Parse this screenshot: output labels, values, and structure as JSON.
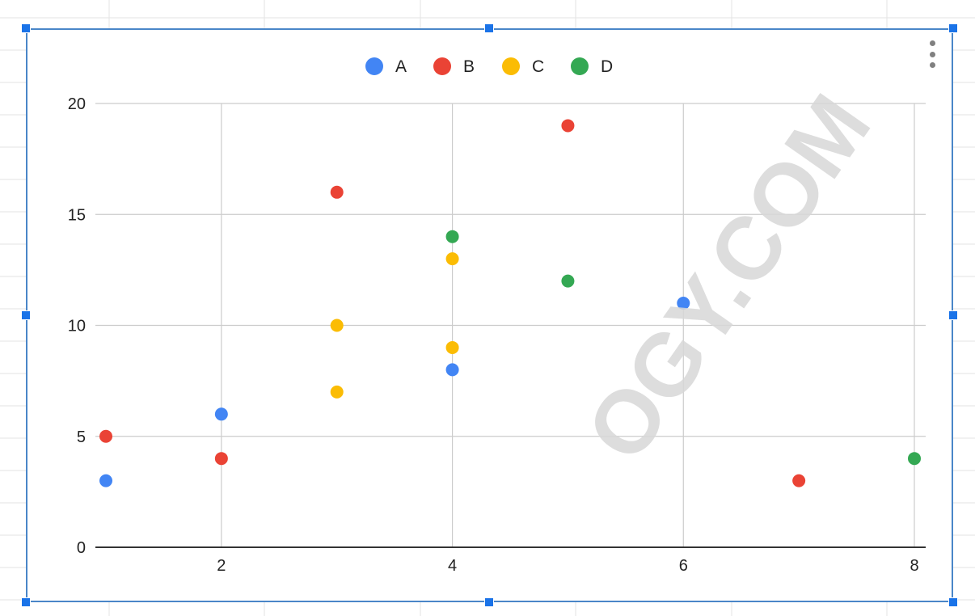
{
  "chart_data": {
    "type": "scatter",
    "title": "",
    "xlabel": "",
    "ylabel": "",
    "xlim": [
      1,
      8
    ],
    "ylim": [
      0,
      20
    ],
    "x_ticks": [
      "2",
      "4",
      "6",
      "8"
    ],
    "y_ticks": [
      "0",
      "5",
      "10",
      "15",
      "20"
    ],
    "grid": true,
    "legend_position": "top",
    "series": [
      {
        "name": "A",
        "color": "#4285f4",
        "points": [
          [
            1,
            3
          ],
          [
            2,
            6
          ],
          [
            4,
            8
          ],
          [
            6,
            11
          ]
        ]
      },
      {
        "name": "B",
        "color": "#ea4335",
        "points": [
          [
            1,
            5
          ],
          [
            2,
            4
          ],
          [
            3,
            16
          ],
          [
            5,
            19
          ],
          [
            7,
            3
          ]
        ]
      },
      {
        "name": "C",
        "color": "#fbbc04",
        "points": [
          [
            3,
            7
          ],
          [
            3,
            10
          ],
          [
            4,
            9
          ],
          [
            4,
            13
          ]
        ]
      },
      {
        "name": "D",
        "color": "#34a853",
        "points": [
          [
            4,
            14
          ],
          [
            5,
            12
          ],
          [
            8,
            4
          ]
        ]
      }
    ]
  },
  "watermark": {
    "text": "OGY.COM"
  },
  "menu_icon": "more-vertical-icon"
}
